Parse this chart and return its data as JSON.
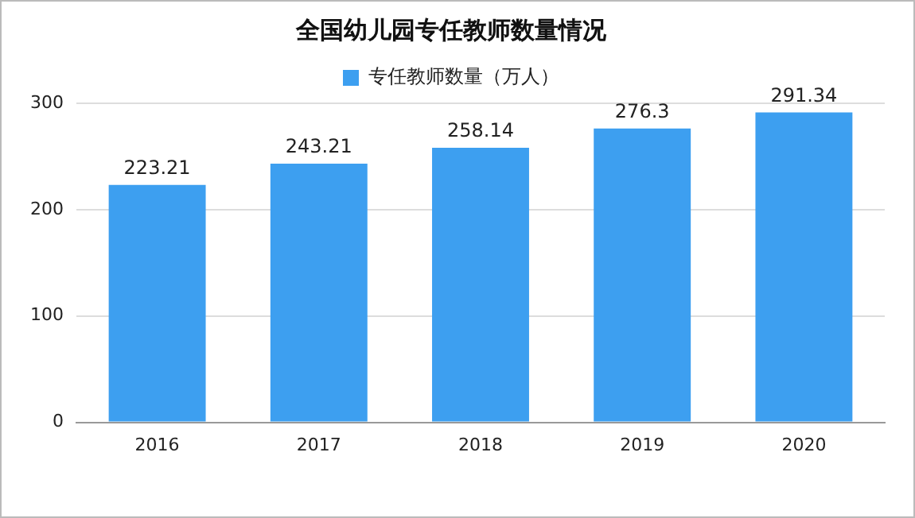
{
  "chart_data": {
    "type": "bar",
    "title": "全国幼儿园专任教师数量情况",
    "categories": [
      "2016",
      "2017",
      "2018",
      "2019",
      "2020"
    ],
    "series": [
      {
        "name": "专任教师数量（万人）",
        "color": "#3d9ff0",
        "values": [
          223.21,
          243.21,
          258.14,
          276.3,
          291.34
        ]
      }
    ],
    "ylim": [
      0,
      300
    ],
    "yticks": [
      0,
      100,
      200,
      300
    ],
    "grid": "y",
    "legend": "top",
    "data_labels": true
  }
}
